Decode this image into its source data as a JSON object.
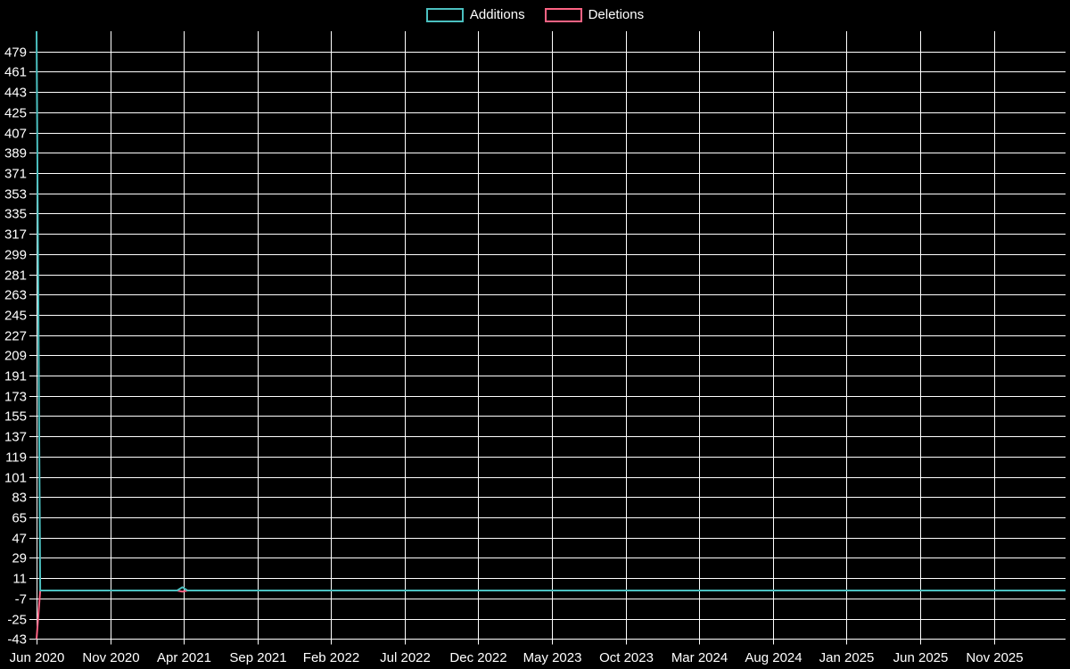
{
  "legend": {
    "items": [
      {
        "label": "Additions",
        "color": "#4bc0c0"
      },
      {
        "label": "Deletions",
        "color": "#ff6384"
      }
    ]
  },
  "chart_data": {
    "type": "line",
    "title": "",
    "xlabel": "",
    "ylabel": "",
    "background_color": "#000000",
    "grid": true,
    "grid_color": "#ffffff",
    "text_color": "#ffffff",
    "legend_position": "top",
    "x_axis": {
      "tick_labels": [
        "Jun 2020",
        "Nov 2020",
        "Apr 2021",
        "Sep 2021",
        "Feb 2022",
        "Jul 2022",
        "Dec 2022",
        "May 2023",
        "Oct 2023",
        "Mar 2024",
        "Aug 2024",
        "Jan 2025",
        "Jun 2025",
        "Nov 2025"
      ],
      "tick_interval_months": 5,
      "unit": "months since Jun 2020",
      "domain_months": [
        0,
        69.87
      ]
    },
    "y_axis": {
      "min": -43,
      "max": 497,
      "tick_step": 18,
      "tick_labels": [
        479,
        461,
        443,
        425,
        407,
        389,
        371,
        353,
        335,
        317,
        299,
        281,
        263,
        245,
        227,
        209,
        191,
        173,
        155,
        137,
        119,
        101,
        83,
        65,
        47,
        29,
        11,
        -7,
        -25,
        -43
      ]
    },
    "series": [
      {
        "name": "Deletions",
        "color": "#ff6384",
        "points": [
          [
            0,
            -43
          ],
          [
            0.25,
            0
          ],
          [
            9.55,
            0
          ],
          [
            9.9,
            -1
          ],
          [
            10.25,
            0
          ],
          [
            69.87,
            0
          ]
        ]
      },
      {
        "name": "Additions",
        "color": "#4bc0c0",
        "points": [
          [
            0,
            497
          ],
          [
            0.25,
            0
          ],
          [
            9.55,
            0
          ],
          [
            9.9,
            3
          ],
          [
            10.25,
            0
          ],
          [
            69.87,
            0
          ]
        ]
      }
    ]
  }
}
